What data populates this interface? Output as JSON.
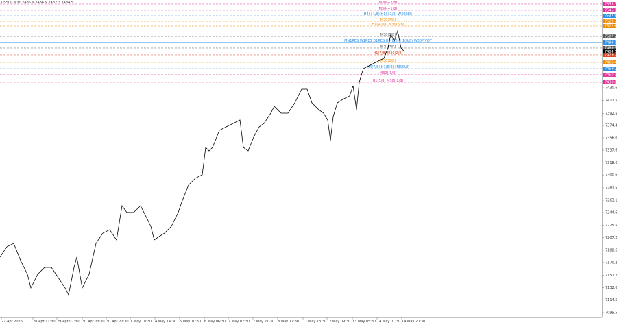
{
  "chart_data": {
    "type": "line",
    "title": "US500,M30 7485.9 7486.9 7482.3 7484.5",
    "color": "#000000",
    "x": [
      0,
      10,
      20,
      30,
      40,
      45,
      55,
      65,
      75,
      85,
      95,
      100,
      108,
      112,
      120,
      130,
      140,
      150,
      160,
      170,
      178,
      185,
      195,
      205,
      215,
      220,
      225,
      232,
      240,
      250,
      260,
      265,
      275,
      285,
      295,
      300,
      305,
      310,
      320,
      330,
      340,
      350,
      355,
      362,
      370,
      378,
      385,
      395,
      400,
      410,
      420,
      430,
      440,
      448,
      455,
      465,
      472,
      478,
      482,
      486,
      492,
      500,
      510,
      515,
      520,
      524,
      530,
      540,
      550,
      560,
      566,
      570,
      575,
      580,
      585,
      590
    ],
    "values": [
      7178.3,
      7193.6,
      7198.7,
      7173.2,
      7152.7,
      7132.3,
      7152.7,
      7162.9,
      7162.9,
      7147.6,
      7132.3,
      7122.1,
      7162.9,
      7178.3,
      7132.3,
      7152.7,
      7198.7,
      7214.0,
      7219.1,
      7203.8,
      7254.9,
      7244.7,
      7244.7,
      7254.9,
      7234.5,
      7224.2,
      7203.8,
      7208.9,
      7214.0,
      7224.2,
      7244.7,
      7260.0,
      7285.5,
      7295.8,
      7300.9,
      7341.7,
      7336.6,
      7341.7,
      7367.3,
      7372.4,
      7377.5,
      7382.6,
      7341.7,
      7336.6,
      7357.1,
      7372.4,
      7377.5,
      7392.8,
      7403.0,
      7392.8,
      7392.8,
      7408.1,
      7428.6,
      7428.6,
      7408.1,
      7397.9,
      7392.8,
      7382.6,
      7352.0,
      7387.7,
      7408.1,
      7413.3,
      7418.4,
      7433.7,
      7397.9,
      7438.8,
      7459.2,
      7464.3,
      7469.4,
      7474.6,
      7489.9,
      7510.3,
      7500.1,
      7515.4,
      7489.9,
      7484.5
    ],
    "xlim": [
      0,
      878
    ],
    "xticks": [
      {
        "value": 2,
        "label": "27 Apr 2026"
      },
      {
        "value": 48,
        "label": "28 Apr 11:30"
      },
      {
        "value": 83,
        "label": "29 Apr 07:30"
      },
      {
        "value": 120,
        "label": "30 Apr 03:30"
      },
      {
        "value": 155,
        "label": "30 Apr 22:30"
      },
      {
        "value": 190,
        "label": "1 May 18:30"
      },
      {
        "value": 226,
        "label": "4 May 14:30"
      },
      {
        "value": 262,
        "label": "5 May 10:30"
      },
      {
        "value": 298,
        "label": "6 May 06:30"
      },
      {
        "value": 333,
        "label": "7 May 02:30"
      },
      {
        "value": 369,
        "label": "7 May 21:30"
      },
      {
        "value": 405,
        "label": "8 May 17:30"
      },
      {
        "value": 442,
        "label": "11 May 13:30"
      },
      {
        "value": 477,
        "label": "12 May 09:30"
      },
      {
        "value": 514,
        "label": "13 May 05:30"
      },
      {
        "value": 550,
        "label": "14 May 01:30"
      },
      {
        "value": 586,
        "label": "14 May 20:30"
      }
    ],
    "ylim": [
      7088.3,
      7561.4
    ],
    "yticks": [
      7430.6,
      7411.5,
      7392.5,
      7374.4,
      {
        "value": 7356,
        "label": "7356.0"
      },
      7337.6,
      7318.6,
      7300.6,
      7281.5,
      7263.1,
      7244.6,
      7225.5,
      7207.2,
      7188.6,
      7170.2,
      7151.2,
      7132.6,
      7114.5,
      7095.5
    ],
    "levels": [
      {
        "label": "M30(+2/8)",
        "value": 7555.3,
        "color": "#e0309a"
      },
      {
        "label": "M30(+1/8)",
        "value": 7546.1,
        "color": "#e0309a"
      },
      {
        "label": "H4(+1/8) H1(+2/8) W30RES",
        "value": 7537.9,
        "color": "#2e8ee6"
      },
      {
        "label": "M30(7/8)",
        "value": 7529.7,
        "color": "#f08a00"
      },
      {
        "label": "H1(+1/8) M30(6/8)",
        "value": 7522.6,
        "color": "#f08a00"
      },
      {
        "label": "M30(5/8)",
        "value": 7507.2,
        "color": "#555555"
      },
      {
        "label": "MN1RES W1RES D1RES H4(8/8) H1(8/8) W30PIVOT",
        "value": 7498.1,
        "color": "#2e8ee6"
      },
      {
        "label": "M30(3/8)",
        "value": 7489.9,
        "color": "#555555"
      },
      {
        "label": "H1(7/8) M30(2/8)",
        "value": 7479.7,
        "color": "#e04020"
      },
      {
        "label": "M30(1/8)",
        "value": 7468.4,
        "color": "#f08a00"
      },
      {
        "label": "H4(7/8) H1(6/8) M30SUP",
        "value": 7459.2,
        "color": "#2e8ee6"
      },
      {
        "label": "M30(-1/8)",
        "value": 7450.1,
        "color": "#e0309a"
      },
      {
        "label": "H1(5/8) M30(-2/8)",
        "value": 7438.8,
        "color": "#e0309a"
      }
    ],
    "current_price": 7484.5
  }
}
